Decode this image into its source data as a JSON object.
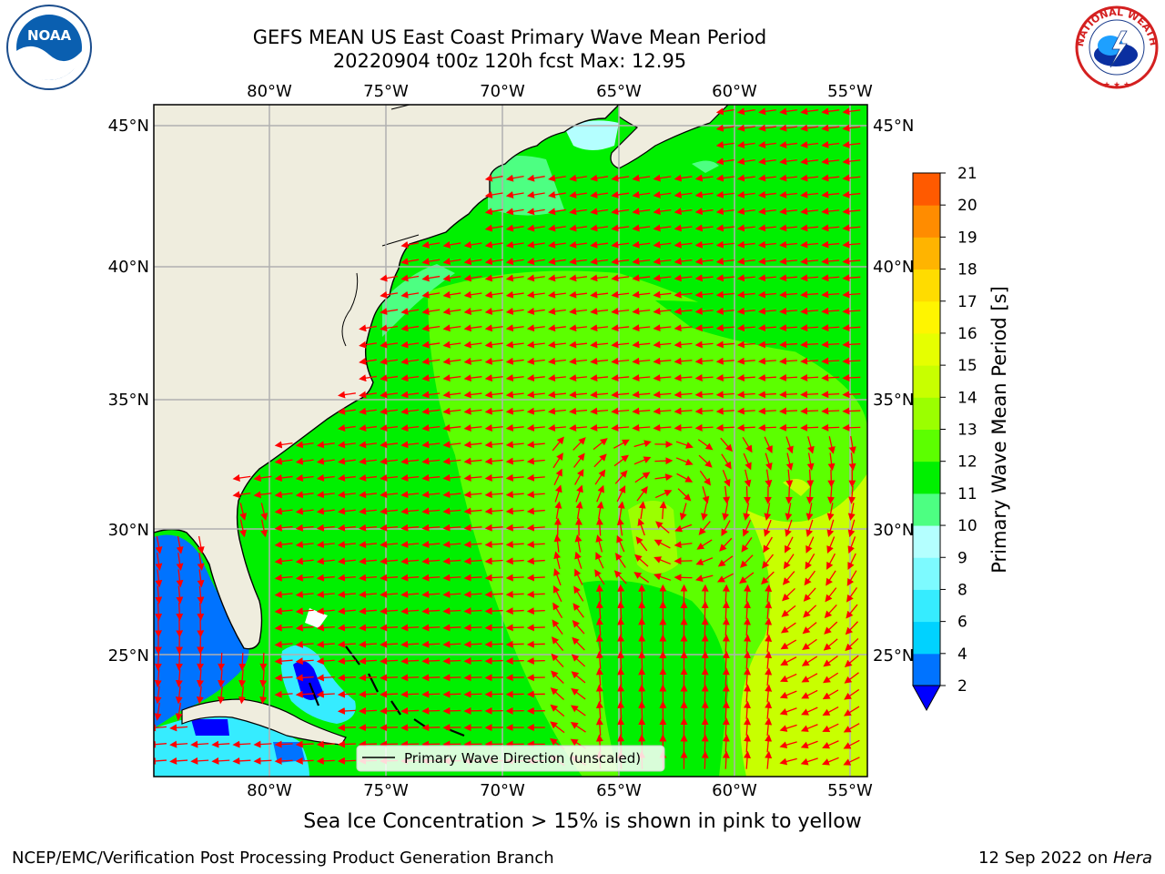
{
  "title_line1": "GEFS MEAN US East Coast Primary Wave Mean Period",
  "title_line2": "20220904 t00z 120h fcst   Max: 12.95",
  "lon_labels": [
    "80°W",
    "75°W",
    "70°W",
    "65°W",
    "60°W",
    "55°W"
  ],
  "lat_labels": [
    "45°N",
    "40°N",
    "35°N",
    "30°N",
    "25°N"
  ],
  "colorbar": {
    "label": "Primary Wave Mean Period [s]",
    "ticks": [
      "2",
      "4",
      "6",
      "8",
      "9",
      "10",
      "11",
      "12",
      "13",
      "14",
      "15",
      "16",
      "17",
      "18",
      "19",
      "20",
      "21"
    ],
    "colors": [
      "#0073ff",
      "#00d2ff",
      "#36ecff",
      "#7dfaff",
      "#b4ffff",
      "#4dff82",
      "#00f000",
      "#5cff00",
      "#9bff00",
      "#c8ff00",
      "#e6ff00",
      "#fff500",
      "#ffdc00",
      "#ffb400",
      "#ff8c00",
      "#ff5a00",
      "#ff2800",
      "#ff0000"
    ],
    "under_color": "#0000ff"
  },
  "legend_label": "Primary Wave Direction (unscaled)",
  "sea_ice_note": "Sea Ice Concentration > 15% is shown in pink to yellow",
  "footer_left": "NCEP/EMC/Verification Post Processing Product Generation Branch",
  "footer_right_date": "12 Sep 2022 on ",
  "footer_right_host": "Hera",
  "logo_left_text": "NOAA",
  "logo_right_text": "NATIONAL WEATHER SERVICE",
  "map_colors": {
    "land": "#efedde",
    "grid": "#b0b0b0",
    "arrow": "#ff0000",
    "coast": "#000000"
  }
}
